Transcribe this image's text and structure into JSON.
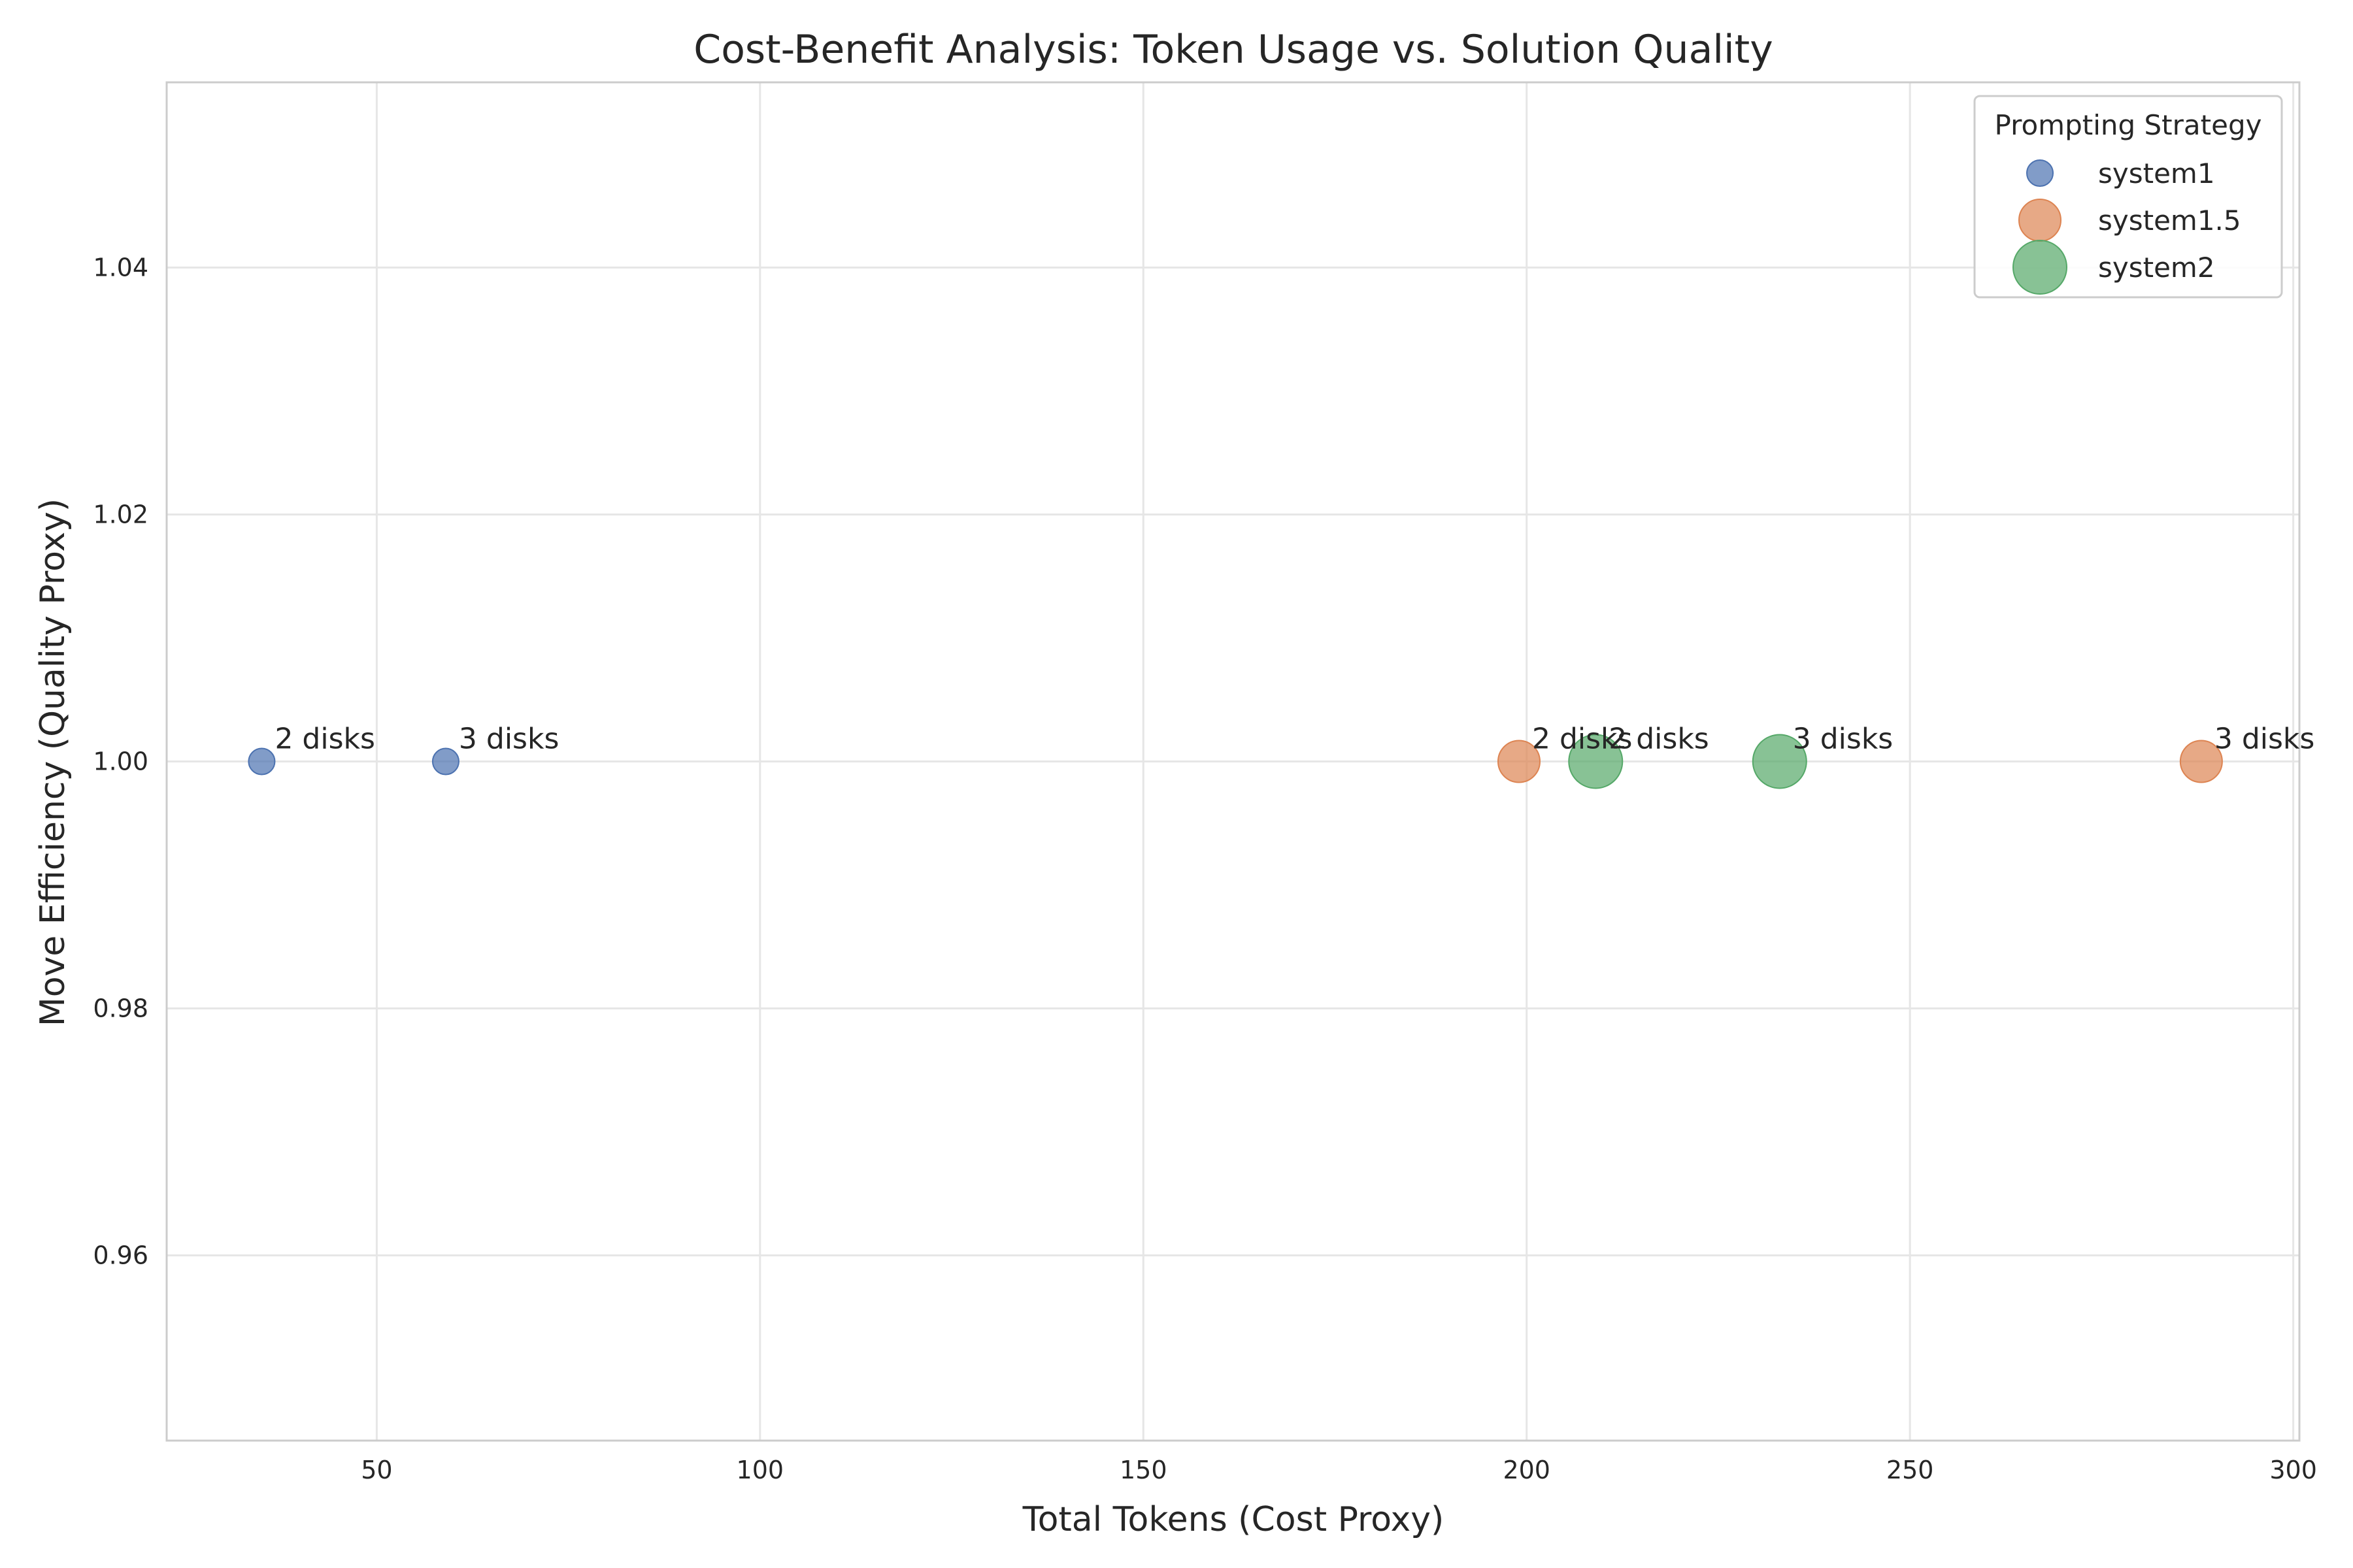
{
  "chart_data": {
    "type": "scatter",
    "title": "Cost-Benefit Analysis: Token Usage vs. Solution Quality",
    "xlabel": "Total Tokens (Cost Proxy)",
    "ylabel": "Move Efficiency (Quality Proxy)",
    "xlim": [
      22.6,
      300.8
    ],
    "ylim": [
      0.945,
      1.055
    ],
    "xticks": [
      50,
      100,
      150,
      200,
      250,
      300
    ],
    "yticks": [
      0.96,
      0.98,
      1.0,
      1.02,
      1.04
    ],
    "ytick_labels": [
      "0.96",
      "0.98",
      "1.00",
      "1.02",
      "1.04"
    ],
    "grid": true,
    "legend": {
      "title": "Prompting Strategy",
      "placement": "top-right"
    },
    "series": [
      {
        "name": "system1",
        "color": "#4c72b0",
        "points": [
          {
            "x": 35,
            "y": 1.0,
            "label": "2 disks"
          },
          {
            "x": 59,
            "y": 1.0,
            "label": "3 disks"
          }
        ]
      },
      {
        "name": "system1.5",
        "color": "#dd8452",
        "points": [
          {
            "x": 199,
            "y": 1.0,
            "label": "2 disks"
          },
          {
            "x": 288,
            "y": 1.0,
            "label": "3 disks"
          }
        ]
      },
      {
        "name": "system2",
        "color": "#55a868",
        "points": [
          {
            "x": 209,
            "y": 1.0,
            "label": "2 disks"
          },
          {
            "x": 233,
            "y": 1.0,
            "label": "3 disks"
          }
        ]
      }
    ]
  }
}
